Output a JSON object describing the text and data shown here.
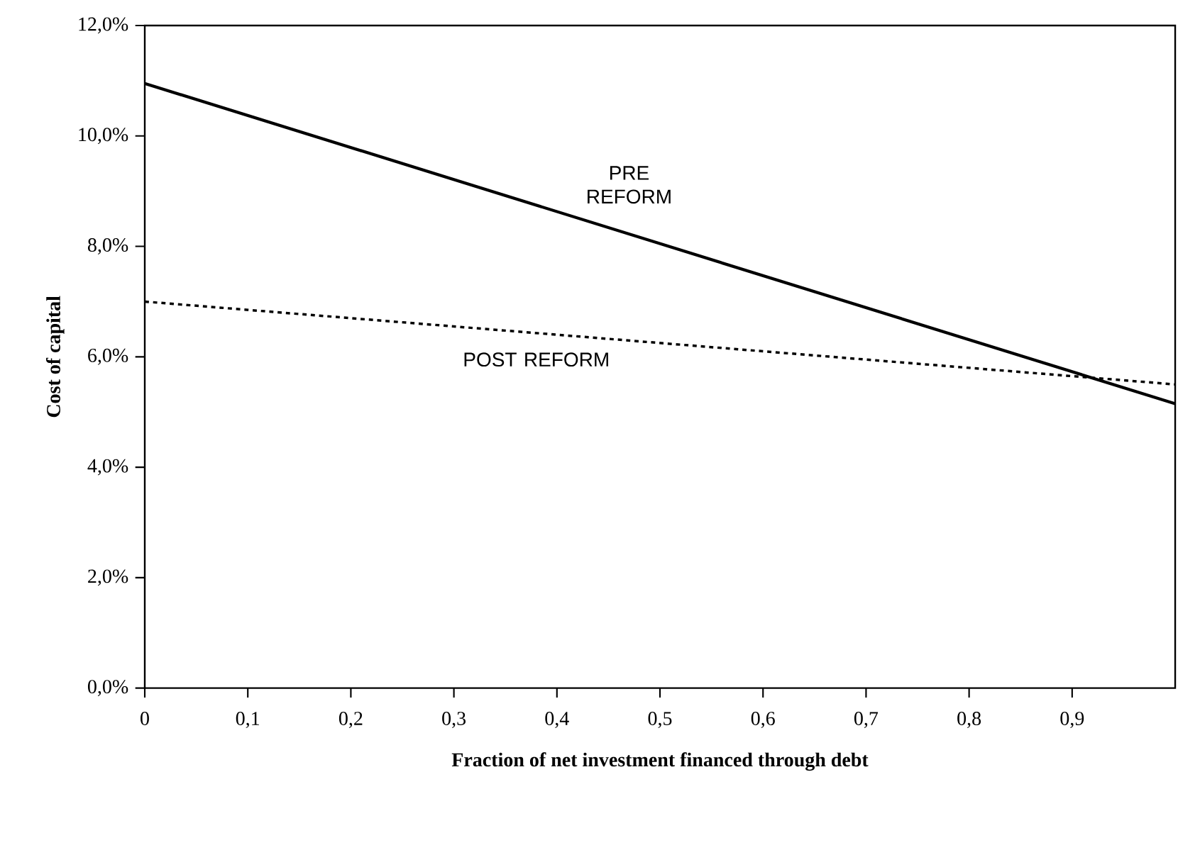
{
  "chart_data": {
    "type": "line",
    "xlabel": "Fraction of net investment financed through debt",
    "ylabel": "Cost of capital",
    "x": [
      0,
      1
    ],
    "series": [
      {
        "name": "PRE REFORM",
        "color": "#000000",
        "line_style": "solid",
        "values": [
          10.95,
          5.15
        ]
      },
      {
        "name": "POST REFORM",
        "color": "#000000",
        "line_style": "dotted",
        "values": [
          7.0,
          5.5
        ]
      }
    ],
    "xlim": [
      0,
      1
    ],
    "ylim": [
      0,
      12
    ],
    "xticks": [
      0,
      {
        "value": 0.1,
        "label": "0,1"
      },
      {
        "value": 0.2,
        "label": "0,2"
      },
      {
        "value": 0.3,
        "label": "0,3"
      },
      {
        "value": 0.4,
        "label": "0,4"
      },
      {
        "value": 0.5,
        "label": "0,5"
      },
      {
        "value": 0.6,
        "label": "0,6"
      },
      {
        "value": 0.7,
        "label": "0,7"
      },
      {
        "value": 0.8,
        "label": "0,8"
      },
      {
        "value": 0.9,
        "label": "0,9"
      }
    ],
    "yticks": [
      {
        "value": 0,
        "label": "0,0%"
      },
      {
        "value": 2,
        "label": "2,0%"
      },
      {
        "value": 4,
        "label": "4,0%"
      },
      {
        "value": 6,
        "label": "6,0%"
      },
      {
        "value": 8,
        "label": "8,0%"
      },
      {
        "value": 10,
        "label": "10,0%"
      },
      {
        "value": 12,
        "label": "12,0%"
      }
    ],
    "grid": false,
    "legend": false,
    "marker": "none"
  }
}
